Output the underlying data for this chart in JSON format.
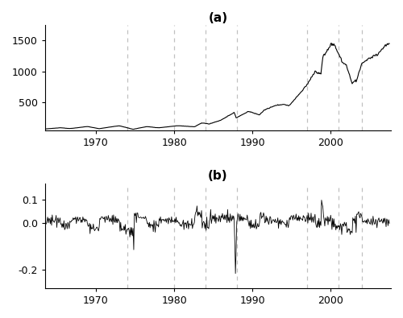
{
  "title_a": "(a)",
  "title_b": "(b)",
  "yticks_a": [
    500,
    1000,
    1500
  ],
  "yticks_b": [
    -0.2,
    0.0,
    0.1
  ],
  "ylim_a": [
    50,
    1750
  ],
  "ylim_b": [
    -0.28,
    0.17
  ],
  "xticks": [
    1970,
    1980,
    1990,
    2000
  ],
  "vlines": [
    1974,
    1980,
    1984,
    1988,
    1997,
    2001,
    2004
  ],
  "line_color": "#000000",
  "bg_color": "#ffffff",
  "grid_color": "#c0c0c0",
  "dpi": 100,
  "figsize": [
    5.0,
    3.95
  ]
}
